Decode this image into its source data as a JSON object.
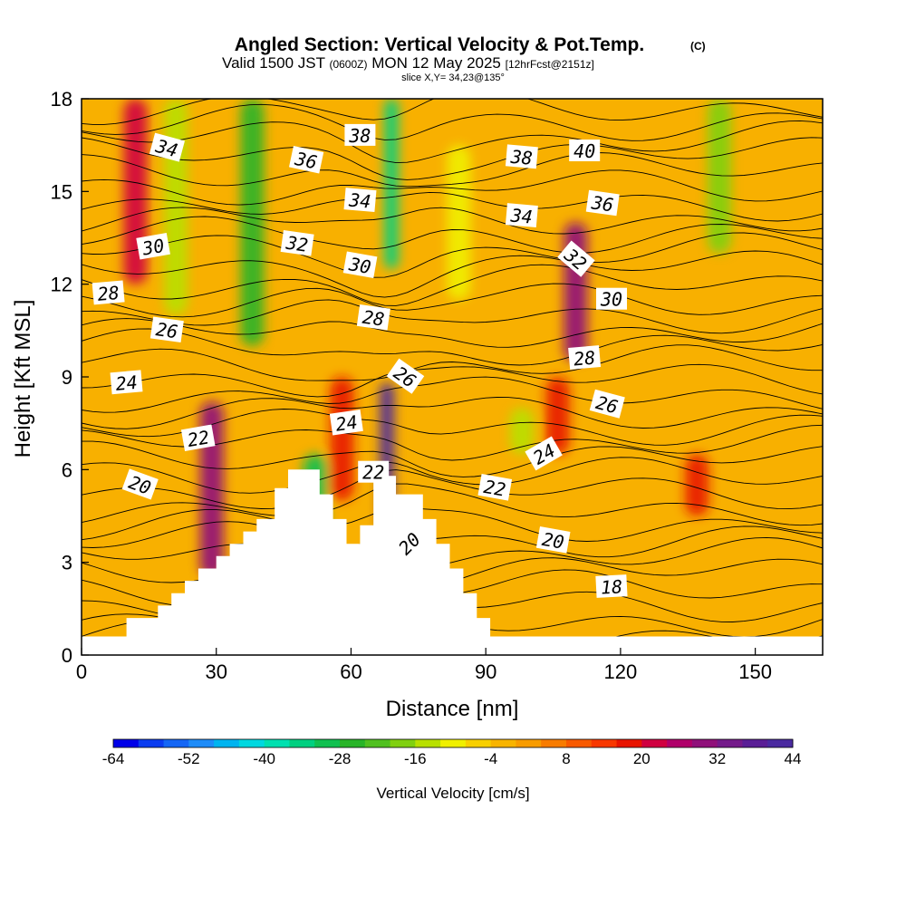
{
  "title": {
    "main": "Angled Section: Vertical Velocity & Pot.Temp.",
    "unit": "(C)",
    "valid_prefix": "Valid 1500 JST",
    "valid_z": "(0600Z)",
    "valid_date": "MON 12 May 2025",
    "fcst": "[12hrFcst@2151z]",
    "slice": "slice X,Y= 34,23@135°"
  },
  "chart_data": {
    "type": "heatmap",
    "title": "Angled Section: Vertical Velocity & Pot.Temp.",
    "xlabel": "Distance [nm]",
    "ylabel": "Height [Kft MSL]",
    "xlim": [
      0,
      165
    ],
    "ylim": [
      0,
      18
    ],
    "x_ticks": [
      0,
      30,
      60,
      90,
      120,
      150
    ],
    "y_ticks": [
      0,
      3,
      6,
      9,
      12,
      15,
      18
    ],
    "x_tick_labels": [
      "0",
      "30",
      "60",
      "90",
      "120",
      "150"
    ],
    "y_tick_labels": [
      "0",
      "3",
      "6",
      "9",
      "12",
      "15",
      "18"
    ],
    "colorbar": {
      "title": "Vertical Velocity [cm/s]",
      "min": -64,
      "max": 44,
      "step": 4,
      "tick_values": [
        -64,
        -52,
        -40,
        -28,
        -16,
        -4,
        8,
        20,
        32,
        44
      ],
      "tick_labels": [
        "-64",
        "-52",
        "-40",
        "-28",
        "-16",
        "-4",
        "8",
        "20",
        "32",
        "44"
      ],
      "colors": [
        "#0000e8",
        "#0a3cf0",
        "#1466f5",
        "#1e8cf8",
        "#00b4f0",
        "#00d8e0",
        "#00e0b0",
        "#00d080",
        "#10c050",
        "#28b428",
        "#50c020",
        "#80d010",
        "#b8e000",
        "#f0f000",
        "#f8d000",
        "#f8b400",
        "#f89c00",
        "#f87c00",
        "#f85a00",
        "#f83800",
        "#e81400",
        "#d00040",
        "#b0006a",
        "#90107a",
        "#741a8a",
        "#5a1e96",
        "#4a2aa0"
      ]
    },
    "terrain": {
      "description_free": true,
      "profile": [
        [
          0,
          0.6
        ],
        [
          10,
          0.6
        ],
        [
          10,
          1.2
        ],
        [
          17,
          1.2
        ],
        [
          17,
          1.6
        ],
        [
          20,
          1.6
        ],
        [
          20,
          2.0
        ],
        [
          23,
          2.0
        ],
        [
          23,
          2.4
        ],
        [
          26,
          2.4
        ],
        [
          26,
          2.8
        ],
        [
          30,
          2.8
        ],
        [
          30,
          3.2
        ],
        [
          33,
          3.2
        ],
        [
          33,
          3.6
        ],
        [
          36,
          3.6
        ],
        [
          36,
          4.0
        ],
        [
          39,
          4.0
        ],
        [
          39,
          4.4
        ],
        [
          43,
          4.4
        ],
        [
          43,
          5.4
        ],
        [
          46,
          5.4
        ],
        [
          46,
          6.0
        ],
        [
          53,
          6.0
        ],
        [
          53,
          5.2
        ],
        [
          56,
          5.2
        ],
        [
          56,
          4.4
        ],
        [
          59,
          4.4
        ],
        [
          59,
          3.6
        ],
        [
          62,
          3.6
        ],
        [
          62,
          4.2
        ],
        [
          65,
          4.2
        ],
        [
          65,
          5.8
        ],
        [
          70,
          5.8
        ],
        [
          70,
          5.2
        ],
        [
          76,
          5.2
        ],
        [
          76,
          4.4
        ],
        [
          79,
          4.4
        ],
        [
          79,
          3.6
        ],
        [
          82,
          3.6
        ],
        [
          82,
          2.8
        ],
        [
          85,
          2.8
        ],
        [
          85,
          2.0
        ],
        [
          88,
          2.0
        ],
        [
          88,
          1.2
        ],
        [
          91,
          1.2
        ],
        [
          91,
          0.6
        ],
        [
          165,
          0.6
        ]
      ]
    },
    "vertical_velocity_features": [
      {
        "x": 12,
        "y0": 12,
        "y1": 18,
        "value": 20
      },
      {
        "x": 29,
        "y0": 2.5,
        "y1": 8.2,
        "value": 28
      },
      {
        "x": 21,
        "y0": 11,
        "y1": 18,
        "value": -14
      },
      {
        "x": 38,
        "y0": 10,
        "y1": 18,
        "value": -26
      },
      {
        "x": 52,
        "y0": 3.5,
        "y1": 6.5,
        "value": -30
      },
      {
        "x": 58,
        "y0": 5,
        "y1": 9,
        "value": 18
      },
      {
        "x": 68,
        "y0": 4,
        "y1": 8.8,
        "value": 40
      },
      {
        "x": 69,
        "y0": 12.5,
        "y1": 18,
        "value": -36
      },
      {
        "x": 84,
        "y0": 11.5,
        "y1": 16.5,
        "value": -12
      },
      {
        "x": 106,
        "y0": 6.5,
        "y1": 9,
        "value": 18
      },
      {
        "x": 110,
        "y0": 9.5,
        "y1": 14,
        "value": 30
      },
      {
        "x": 142,
        "y0": 13,
        "y1": 18,
        "value": -18
      },
      {
        "x": 137,
        "y0": 4.5,
        "y1": 6.5,
        "value": 16
      },
      {
        "x": 98,
        "y0": 6.5,
        "y1": 8,
        "value": -14
      }
    ],
    "potential_temperature_labels": [
      {
        "text": "34",
        "x": 19,
        "y": 16.4,
        "angle": 15
      },
      {
        "text": "36",
        "x": 50,
        "y": 16.0,
        "angle": 12
      },
      {
        "text": "38",
        "x": 62,
        "y": 16.8,
        "angle": 0
      },
      {
        "text": "38",
        "x": 98,
        "y": 16.1,
        "angle": 5
      },
      {
        "text": "40",
        "x": 112,
        "y": 16.3,
        "angle": 0
      },
      {
        "text": "34",
        "x": 62,
        "y": 14.7,
        "angle": 5
      },
      {
        "text": "34",
        "x": 98,
        "y": 14.2,
        "angle": 5
      },
      {
        "text": "36",
        "x": 116,
        "y": 14.6,
        "angle": 8
      },
      {
        "text": "32",
        "x": 48,
        "y": 13.3,
        "angle": 8
      },
      {
        "text": "32",
        "x": 110,
        "y": 12.8,
        "angle": 40
      },
      {
        "text": "30",
        "x": 16,
        "y": 13.2,
        "angle": -10
      },
      {
        "text": "30",
        "x": 62,
        "y": 12.6,
        "angle": 10
      },
      {
        "text": "30",
        "x": 118,
        "y": 11.5,
        "angle": 0
      },
      {
        "text": "28",
        "x": 6,
        "y": 11.7,
        "angle": -5
      },
      {
        "text": "28",
        "x": 65,
        "y": 10.9,
        "angle": 8
      },
      {
        "text": "28",
        "x": 112,
        "y": 9.6,
        "angle": -5
      },
      {
        "text": "26",
        "x": 19,
        "y": 10.5,
        "angle": 8
      },
      {
        "text": "26",
        "x": 72,
        "y": 9.0,
        "angle": 35
      },
      {
        "text": "26",
        "x": 117,
        "y": 8.1,
        "angle": 15
      },
      {
        "text": "24",
        "x": 10,
        "y": 8.8,
        "angle": -5
      },
      {
        "text": "24",
        "x": 59,
        "y": 7.5,
        "angle": -8
      },
      {
        "text": "24",
        "x": 103,
        "y": 6.5,
        "angle": -30
      },
      {
        "text": "22",
        "x": 26,
        "y": 7.0,
        "angle": -10
      },
      {
        "text": "22",
        "x": 65,
        "y": 5.9,
        "angle": 0
      },
      {
        "text": "22",
        "x": 92,
        "y": 5.4,
        "angle": 10
      },
      {
        "text": "20",
        "x": 13,
        "y": 5.5,
        "angle": 20
      },
      {
        "text": "20",
        "x": 73,
        "y": 3.6,
        "angle": -45
      },
      {
        "text": "20",
        "x": 105,
        "y": 3.7,
        "angle": 10
      },
      {
        "text": "18",
        "x": 118,
        "y": 2.2,
        "angle": -3
      }
    ]
  }
}
